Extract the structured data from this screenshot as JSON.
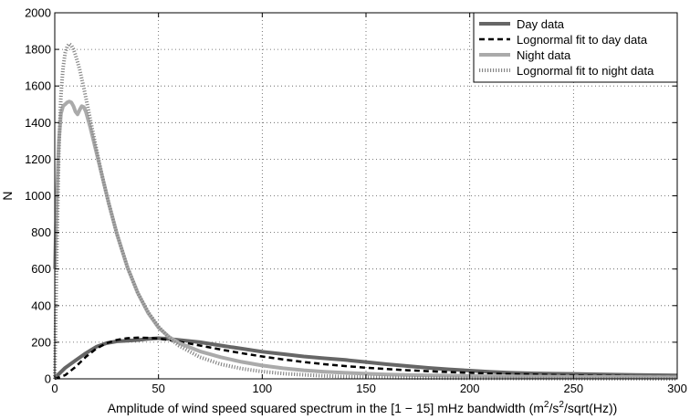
{
  "chart_data": {
    "type": "line",
    "title": "",
    "xlabel": "Amplitude of wind speed squared spectrum in the [1 − 15] mHz bandwidth (m²/s²/sqrt(Hz))",
    "ylabel": "N",
    "xlim": [
      0,
      300
    ],
    "ylim": [
      0,
      2000
    ],
    "xticks": [
      0,
      50,
      100,
      150,
      200,
      250,
      300
    ],
    "yticks": [
      0,
      200,
      400,
      600,
      800,
      1000,
      1200,
      1400,
      1600,
      1800,
      2000
    ],
    "grid": true,
    "legend_position": "top-right",
    "series": [
      {
        "name": "Day data",
        "style": "solid",
        "color": "#666666",
        "x": [
          0,
          5,
          10,
          15,
          20,
          25,
          30,
          35,
          40,
          45,
          50,
          55,
          60,
          70,
          80,
          90,
          100,
          110,
          120,
          130,
          140,
          150,
          160,
          170,
          180,
          190,
          200,
          210,
          220,
          230,
          240,
          250,
          260,
          270,
          280,
          290,
          300
        ],
        "y": [
          5,
          60,
          100,
          140,
          175,
          195,
          205,
          208,
          212,
          218,
          222,
          218,
          212,
          200,
          182,
          165,
          148,
          135,
          122,
          112,
          103,
          92,
          80,
          70,
          60,
          52,
          45,
          38,
          33,
          30,
          28,
          27,
          25,
          23,
          21,
          20,
          19
        ]
      },
      {
        "name": "Lognormal fit to day data",
        "style": "dashed",
        "color": "#000000",
        "x": [
          0,
          5,
          10,
          15,
          20,
          25,
          30,
          35,
          40,
          45,
          50,
          55,
          60,
          70,
          80,
          90,
          100,
          110,
          120,
          130,
          140,
          150,
          160,
          170,
          180,
          190,
          200,
          210,
          220,
          230,
          240,
          250,
          260,
          270,
          280,
          290,
          300
        ],
        "y": [
          0,
          20,
          65,
          120,
          165,
          195,
          213,
          222,
          225,
          224,
          220,
          212,
          203,
          182,
          160,
          140,
          122,
          106,
          92,
          80,
          70,
          61,
          54,
          47,
          42,
          37,
          33,
          29,
          26,
          24,
          21,
          19,
          17,
          16,
          14,
          13,
          12
        ]
      },
      {
        "name": "Night data",
        "style": "solid",
        "color": "#aaaaaa",
        "x": [
          0,
          1,
          2,
          3,
          4,
          5,
          6,
          7,
          8,
          9,
          10,
          11,
          12,
          13,
          14,
          15,
          17,
          20,
          23,
          26,
          30,
          35,
          40,
          45,
          50,
          55,
          60,
          70,
          80,
          90,
          100,
          110,
          120,
          130,
          140,
          150,
          160,
          175,
          200,
          225,
          250,
          275,
          300
        ],
        "y": [
          600,
          1000,
          1300,
          1450,
          1490,
          1500,
          1510,
          1515,
          1510,
          1490,
          1460,
          1445,
          1470,
          1490,
          1485,
          1460,
          1380,
          1240,
          1100,
          960,
          790,
          610,
          470,
          360,
          280,
          230,
          195,
          150,
          118,
          93,
          73,
          58,
          47,
          39,
          33,
          28,
          24,
          20,
          16,
          13,
          11,
          10,
          9
        ]
      },
      {
        "name": "Lognormal fit to night data",
        "style": "dotted",
        "color": "#888888",
        "x": [
          0,
          1,
          2,
          3,
          4,
          5,
          6,
          7,
          8,
          9,
          10,
          11,
          12,
          14,
          16,
          18,
          20,
          23,
          26,
          30,
          35,
          40,
          45,
          50,
          55,
          60,
          70,
          80,
          90,
          100,
          110,
          120,
          130,
          140,
          150,
          175,
          200,
          250,
          300
        ],
        "y": [
          0,
          700,
          1250,
          1550,
          1700,
          1780,
          1815,
          1830,
          1822,
          1800,
          1770,
          1730,
          1690,
          1590,
          1480,
          1370,
          1260,
          1100,
          960,
          790,
          610,
          470,
          365,
          285,
          225,
          180,
          118,
          80,
          56,
          40,
          29,
          22,
          16,
          12,
          9,
          5,
          3,
          1,
          0
        ]
      }
    ]
  }
}
